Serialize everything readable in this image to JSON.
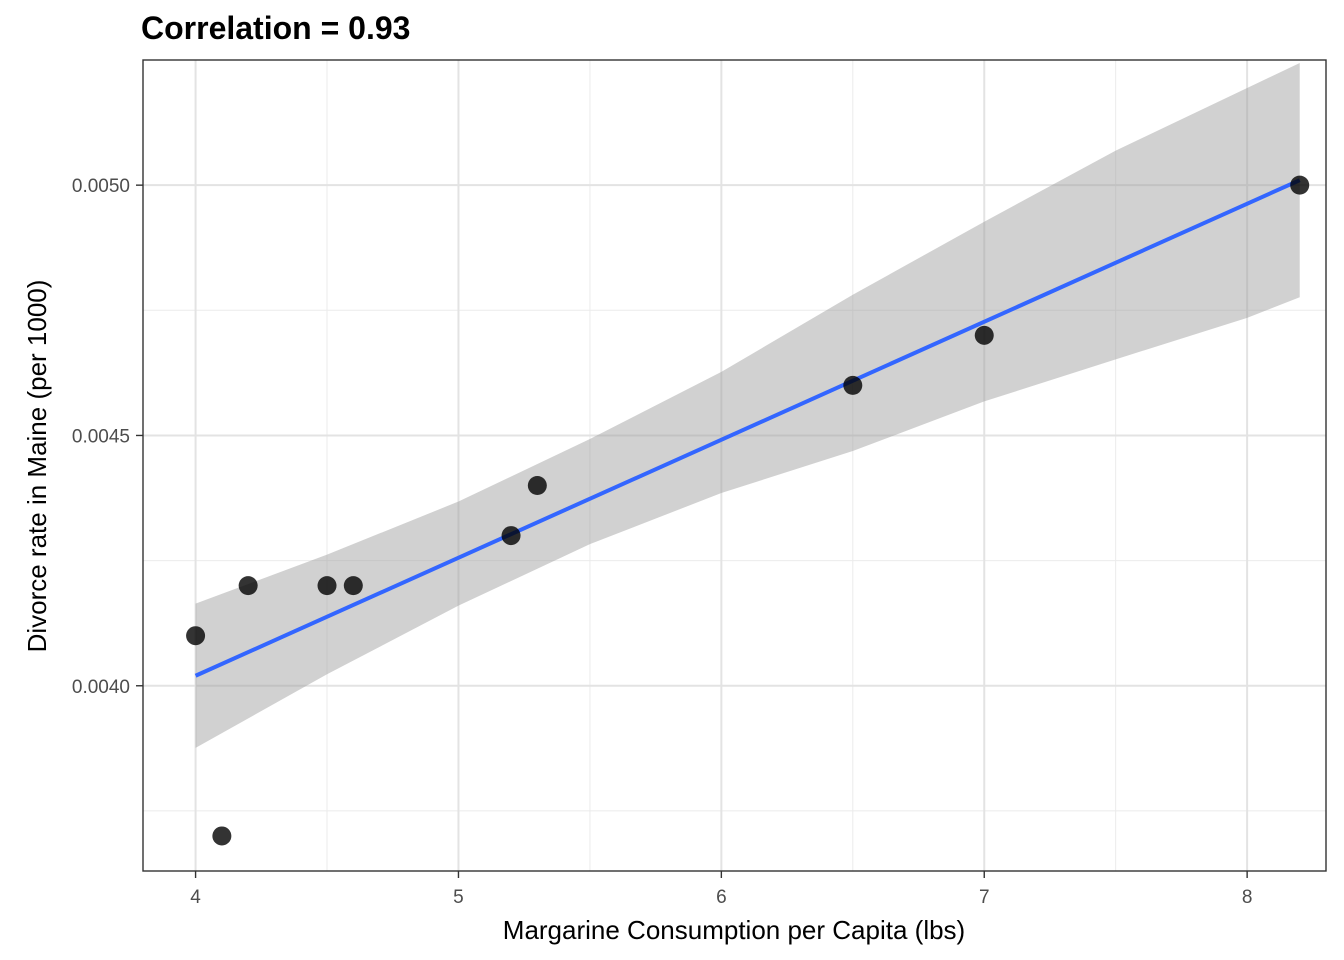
{
  "chart_data": {
    "type": "scatter",
    "title": "Correlation = 0.93",
    "xlabel": "Margarine Consumption per Capita (lbs)",
    "ylabel": "Divorce rate in Maine (per 1000)",
    "xlim": [
      3.8,
      8.3
    ],
    "ylim": [
      0.00363,
      0.00525
    ],
    "x_ticks": [
      4,
      5,
      6,
      7,
      8
    ],
    "x_tick_labels": [
      "4",
      "5",
      "6",
      "7",
      "8"
    ],
    "y_ticks": [
      0.004,
      0.0045,
      0.005
    ],
    "y_tick_labels": [
      "0.0040",
      "0.0045",
      "0.0050"
    ],
    "x_minor_ticks": [
      4.5,
      5.5,
      6.5,
      7.5
    ],
    "y_minor_ticks": [
      0.00375,
      0.00425,
      0.00475,
      0.00525
    ],
    "grid": true,
    "series": [
      {
        "points": [
          {
            "x": 8.2,
            "y": 0.005
          },
          {
            "x": 7.0,
            "y": 0.0047
          },
          {
            "x": 6.5,
            "y": 0.0046
          },
          {
            "x": 5.3,
            "y": 0.0044
          },
          {
            "x": 5.2,
            "y": 0.0043
          },
          {
            "x": 4.6,
            "y": 0.0042
          },
          {
            "x": 4.5,
            "y": 0.0042
          },
          {
            "x": 4.2,
            "y": 0.0042
          },
          {
            "x": 4.1,
            "y": 0.0037
          },
          {
            "x": 4.0,
            "y": 0.0041
          }
        ]
      }
    ],
    "fit_line": {
      "method": "linear",
      "x": [
        4.0,
        8.2
      ],
      "y": [
        0.00402,
        0.00501
      ],
      "color": "#3366FF"
    },
    "confidence_band": {
      "x": [
        4.0,
        4.5,
        5.0,
        5.5,
        6.0,
        6.5,
        7.0,
        7.5,
        8.0,
        8.2
      ],
      "lower": [
        0.003876,
        0.004023,
        0.00416,
        0.004283,
        0.004385,
        0.004469,
        0.004568,
        0.004652,
        0.004735,
        0.004776
      ],
      "upper": [
        0.004164,
        0.004262,
        0.004368,
        0.004493,
        0.004627,
        0.004781,
        0.004927,
        0.005069,
        0.005194,
        0.005244
      ],
      "color": "#999999"
    },
    "point_color": "#000000",
    "point_opacity": 0.8
  }
}
